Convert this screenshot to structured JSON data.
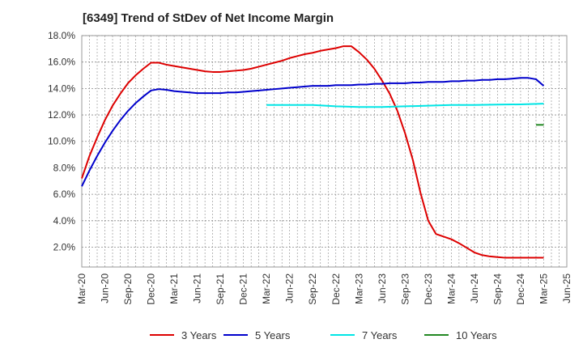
{
  "chart_data": {
    "type": "line",
    "title": "[6349]  Trend of StDev of Net Income Margin",
    "xlabel": "",
    "ylabel": "",
    "x_tick_labels": [
      "Mar-20",
      "Jun-20",
      "Sep-20",
      "Dec-20",
      "Mar-21",
      "Jun-21",
      "Sep-21",
      "Dec-21",
      "Mar-22",
      "Jun-22",
      "Sep-22",
      "Dec-22",
      "Mar-23",
      "Jun-23",
      "Sep-23",
      "Dec-23",
      "Mar-24",
      "Jun-24",
      "Sep-24",
      "Dec-24",
      "Mar-25",
      "Jun-25"
    ],
    "y_tick_labels": [
      "2.0%",
      "4.0%",
      "6.0%",
      "8.0%",
      "10.0%",
      "12.0%",
      "14.0%",
      "16.0%",
      "18.0%"
    ],
    "ylim": [
      0.5,
      18.0
    ],
    "grid": true,
    "legend_position": "bottom",
    "series": [
      {
        "name": "3 Years",
        "color": "#dd0000",
        "points": [
          [
            "Mar-20",
            7.2
          ],
          [
            "Apr-20",
            8.9
          ],
          [
            "May-20",
            10.3
          ],
          [
            "Jun-20",
            11.6
          ],
          [
            "Jul-20",
            12.7
          ],
          [
            "Aug-20",
            13.6
          ],
          [
            "Sep-20",
            14.4
          ],
          [
            "Oct-20",
            15.0
          ],
          [
            "Nov-20",
            15.5
          ],
          [
            "Dec-20",
            15.95
          ],
          [
            "Jan-21",
            15.95
          ],
          [
            "Feb-21",
            15.8
          ],
          [
            "Mar-21",
            15.7
          ],
          [
            "Apr-21",
            15.6
          ],
          [
            "May-21",
            15.5
          ],
          [
            "Jun-21",
            15.4
          ],
          [
            "Jul-21",
            15.3
          ],
          [
            "Aug-21",
            15.25
          ],
          [
            "Sep-21",
            15.25
          ],
          [
            "Oct-21",
            15.3
          ],
          [
            "Nov-21",
            15.35
          ],
          [
            "Dec-21",
            15.4
          ],
          [
            "Jan-22",
            15.5
          ],
          [
            "Feb-22",
            15.65
          ],
          [
            "Mar-22",
            15.8
          ],
          [
            "Apr-22",
            15.95
          ],
          [
            "May-22",
            16.1
          ],
          [
            "Jun-22",
            16.3
          ],
          [
            "Jul-22",
            16.45
          ],
          [
            "Aug-22",
            16.6
          ],
          [
            "Sep-22",
            16.7
          ],
          [
            "Oct-22",
            16.85
          ],
          [
            "Nov-22",
            16.95
          ],
          [
            "Dec-22",
            17.05
          ],
          [
            "Jan-23",
            17.2
          ],
          [
            "Feb-23",
            17.2
          ],
          [
            "Mar-23",
            16.75
          ],
          [
            "Apr-23",
            16.2
          ],
          [
            "May-23",
            15.5
          ],
          [
            "Jun-23",
            14.6
          ],
          [
            "Jul-23",
            13.6
          ],
          [
            "Aug-23",
            12.3
          ],
          [
            "Sep-23",
            10.6
          ],
          [
            "Oct-23",
            8.6
          ],
          [
            "Nov-23",
            6.1
          ],
          [
            "Dec-23",
            4.0
          ],
          [
            "Jan-24",
            3.0
          ],
          [
            "Feb-24",
            2.8
          ],
          [
            "Mar-24",
            2.6
          ],
          [
            "Apr-24",
            2.3
          ],
          [
            "May-24",
            1.95
          ],
          [
            "Jun-24",
            1.6
          ],
          [
            "Jul-24",
            1.4
          ],
          [
            "Aug-24",
            1.3
          ],
          [
            "Sep-24",
            1.25
          ],
          [
            "Oct-24",
            1.2
          ],
          [
            "Nov-24",
            1.2
          ],
          [
            "Dec-24",
            1.2
          ],
          [
            "Jan-25",
            1.2
          ],
          [
            "Feb-25",
            1.2
          ],
          [
            "Mar-25",
            1.2
          ]
        ]
      },
      {
        "name": "5 Years",
        "color": "#0000cc",
        "points": [
          [
            "Mar-20",
            6.6
          ],
          [
            "Apr-20",
            7.8
          ],
          [
            "May-20",
            8.9
          ],
          [
            "Jun-20",
            9.9
          ],
          [
            "Jul-20",
            10.8
          ],
          [
            "Aug-20",
            11.6
          ],
          [
            "Sep-20",
            12.3
          ],
          [
            "Oct-20",
            12.9
          ],
          [
            "Nov-20",
            13.4
          ],
          [
            "Dec-20",
            13.85
          ],
          [
            "Jan-21",
            13.95
          ],
          [
            "Feb-21",
            13.9
          ],
          [
            "Mar-21",
            13.8
          ],
          [
            "Apr-21",
            13.75
          ],
          [
            "May-21",
            13.7
          ],
          [
            "Jun-21",
            13.65
          ],
          [
            "Jul-21",
            13.65
          ],
          [
            "Aug-21",
            13.65
          ],
          [
            "Sep-21",
            13.65
          ],
          [
            "Oct-21",
            13.7
          ],
          [
            "Nov-21",
            13.7
          ],
          [
            "Dec-21",
            13.75
          ],
          [
            "Jan-22",
            13.8
          ],
          [
            "Feb-22",
            13.85
          ],
          [
            "Mar-22",
            13.9
          ],
          [
            "Apr-22",
            13.95
          ],
          [
            "May-22",
            14.0
          ],
          [
            "Jun-22",
            14.05
          ],
          [
            "Jul-22",
            14.1
          ],
          [
            "Aug-22",
            14.15
          ],
          [
            "Sep-22",
            14.2
          ],
          [
            "Oct-22",
            14.2
          ],
          [
            "Nov-22",
            14.2
          ],
          [
            "Dec-22",
            14.25
          ],
          [
            "Jan-23",
            14.25
          ],
          [
            "Feb-23",
            14.25
          ],
          [
            "Mar-23",
            14.3
          ],
          [
            "Apr-23",
            14.3
          ],
          [
            "May-23",
            14.35
          ],
          [
            "Jun-23",
            14.35
          ],
          [
            "Jul-23",
            14.4
          ],
          [
            "Aug-23",
            14.4
          ],
          [
            "Sep-23",
            14.4
          ],
          [
            "Oct-23",
            14.45
          ],
          [
            "Nov-23",
            14.45
          ],
          [
            "Dec-23",
            14.5
          ],
          [
            "Jan-24",
            14.5
          ],
          [
            "Feb-24",
            14.5
          ],
          [
            "Mar-24",
            14.55
          ],
          [
            "Apr-24",
            14.55
          ],
          [
            "May-24",
            14.6
          ],
          [
            "Jun-24",
            14.6
          ],
          [
            "Jul-24",
            14.65
          ],
          [
            "Aug-24",
            14.65
          ],
          [
            "Sep-24",
            14.7
          ],
          [
            "Oct-24",
            14.7
          ],
          [
            "Nov-24",
            14.75
          ],
          [
            "Dec-24",
            14.8
          ],
          [
            "Jan-25",
            14.8
          ],
          [
            "Feb-25",
            14.7
          ],
          [
            "Mar-25",
            14.2
          ]
        ]
      },
      {
        "name": "7 Years",
        "color": "#00e5e5",
        "points": [
          [
            "Mar-22",
            12.75
          ],
          [
            "Jun-22",
            12.75
          ],
          [
            "Sep-22",
            12.75
          ],
          [
            "Dec-22",
            12.65
          ],
          [
            "Mar-23",
            12.6
          ],
          [
            "Jun-23",
            12.6
          ],
          [
            "Sep-23",
            12.65
          ],
          [
            "Dec-23",
            12.7
          ],
          [
            "Mar-24",
            12.75
          ],
          [
            "Jun-24",
            12.75
          ],
          [
            "Sep-24",
            12.78
          ],
          [
            "Dec-24",
            12.8
          ],
          [
            "Mar-25",
            12.85
          ]
        ]
      },
      {
        "name": "10 Years",
        "color": "#228822",
        "points": [
          [
            "Feb-25",
            11.25
          ],
          [
            "Mar-25",
            11.25
          ]
        ]
      }
    ]
  }
}
